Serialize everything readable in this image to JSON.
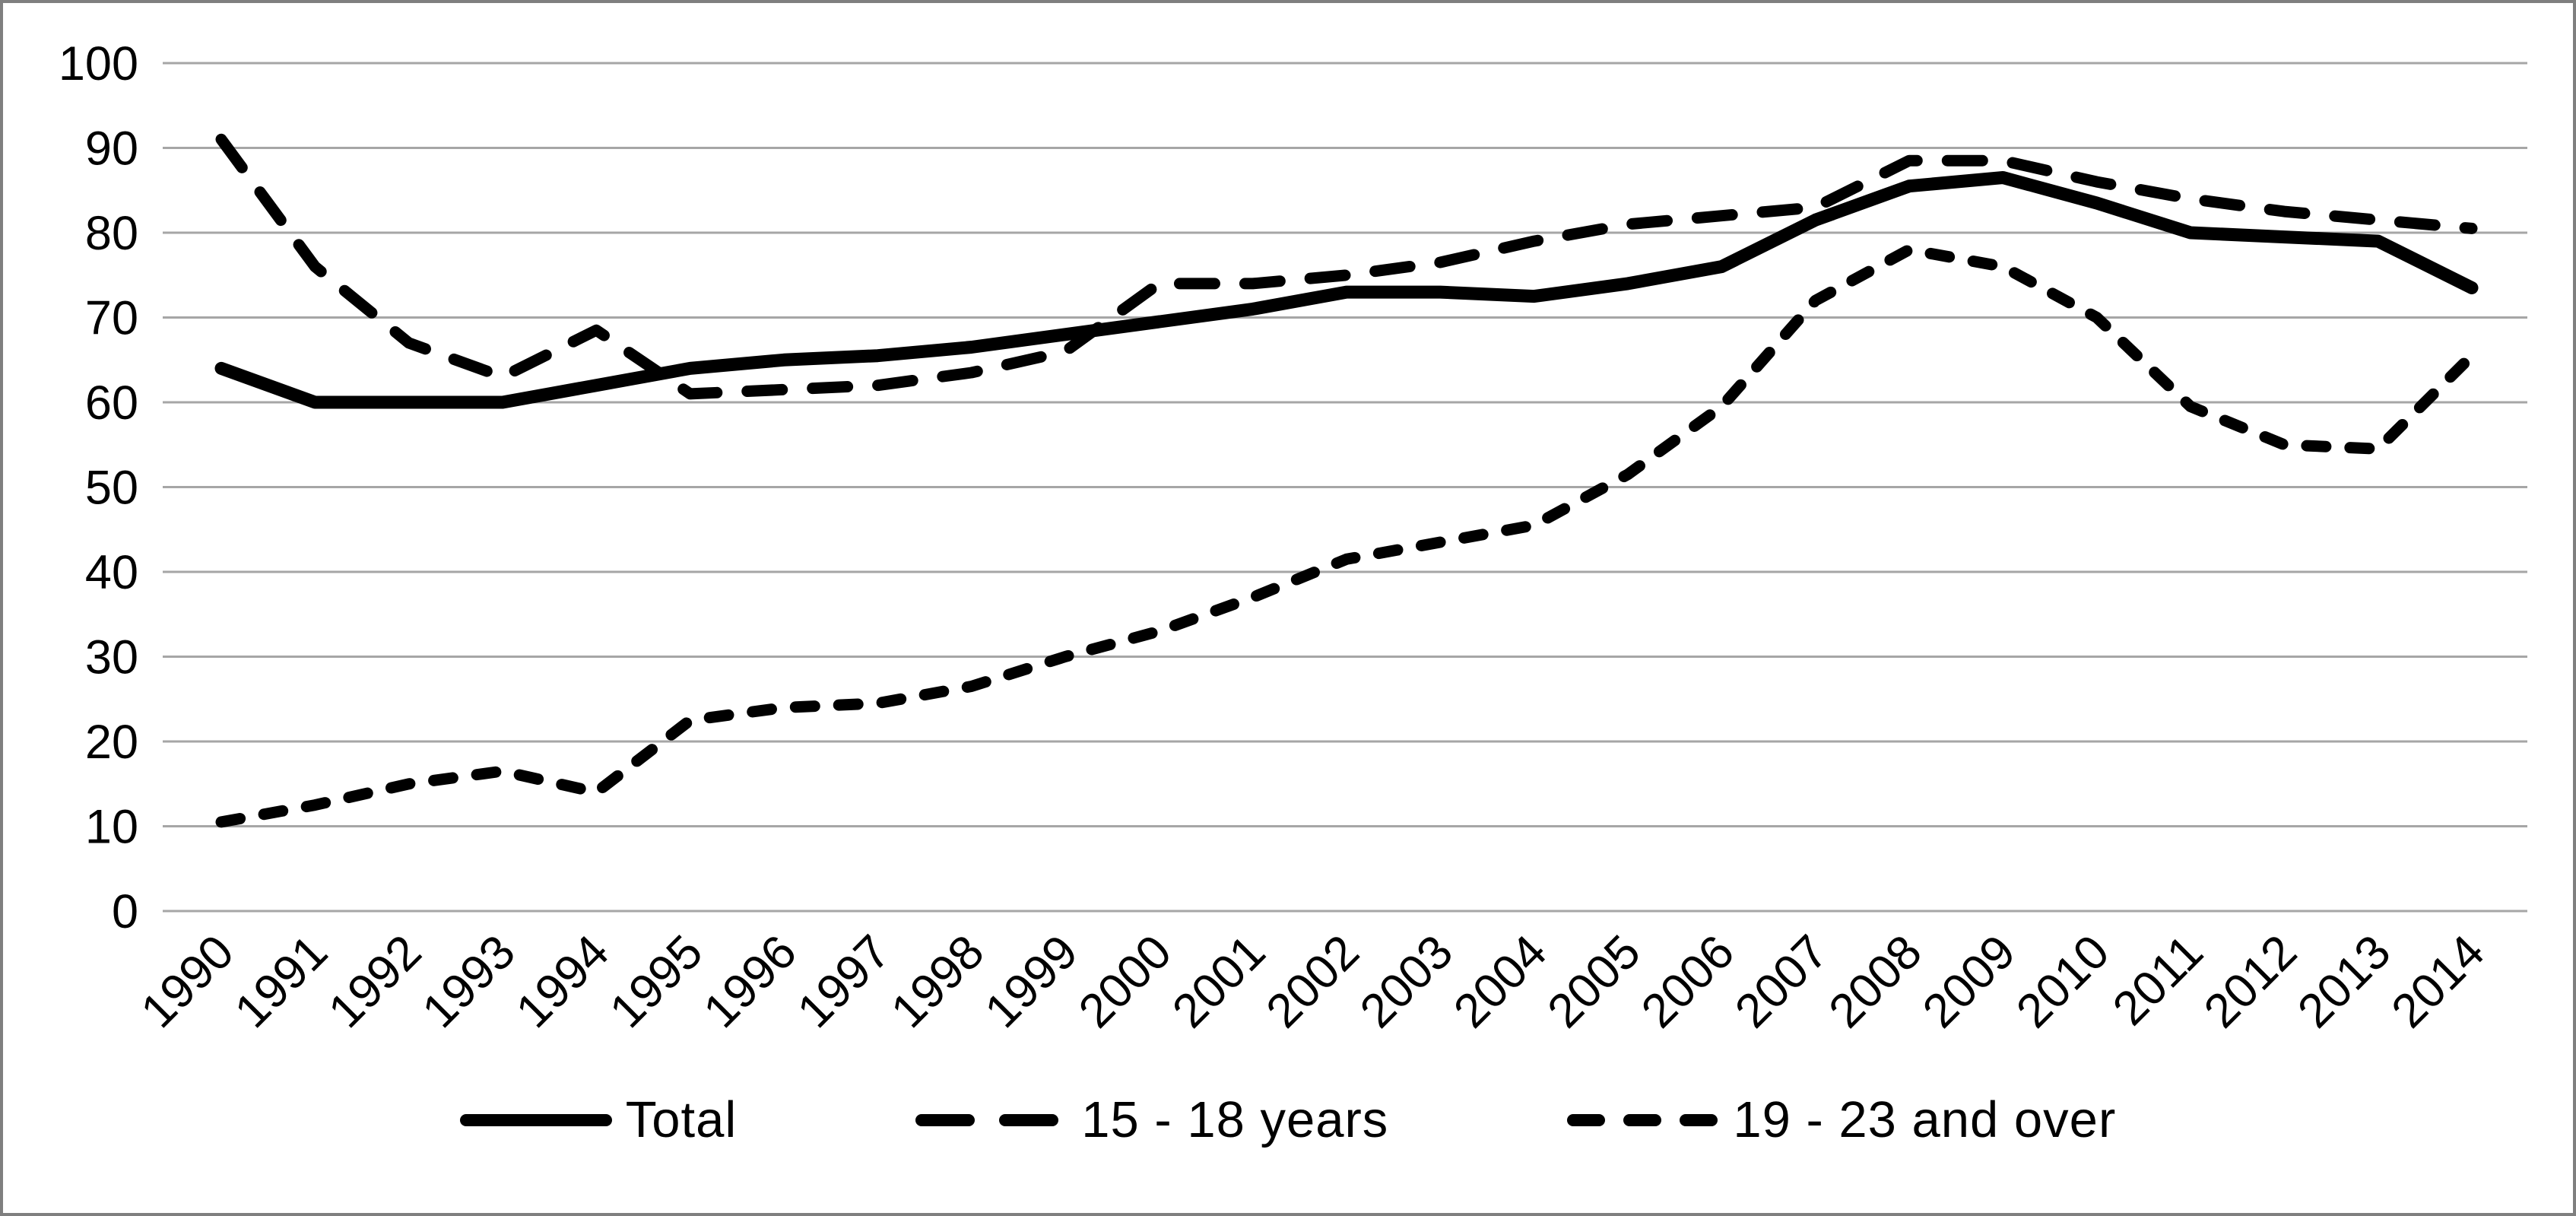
{
  "chart_data": {
    "type": "line",
    "title": "",
    "categories": [
      "1990",
      "1991",
      "1992",
      "1993",
      "1994",
      "1995",
      "1996",
      "1997",
      "1998",
      "1999",
      "2000",
      "2001",
      "2002",
      "2003",
      "2004",
      "2005",
      "2006",
      "2007",
      "2008",
      "2009",
      "2010",
      "2011",
      "2012",
      "2013",
      "2014"
    ],
    "series": [
      {
        "name": "Total",
        "style": "solid",
        "values": [
          64,
          60,
          60,
          60,
          62,
          64,
          65,
          65.5,
          66.5,
          68,
          69.5,
          71,
          73,
          73,
          72.5,
          74,
          76,
          81.5,
          85.5,
          86.5,
          83.5,
          80,
          79.5,
          79,
          73.5
        ]
      },
      {
        "name": "15 - 18 years",
        "style": "long-dash",
        "values": [
          91,
          76,
          67,
          63,
          68.5,
          61,
          61.5,
          62,
          63.5,
          66,
          74,
          74,
          75,
          76.5,
          79,
          81,
          82,
          83,
          88.5,
          88.5,
          86,
          84,
          82.5,
          81.5,
          80.5
        ]
      },
      {
        "name": "19 - 23 and over",
        "style": "short-dash",
        "values": [
          10.5,
          12.5,
          15,
          16.5,
          14,
          22.5,
          24,
          24.5,
          26.5,
          30,
          33,
          37,
          41.5,
          43.5,
          45.5,
          51.5,
          59.5,
          72,
          78,
          76,
          70,
          59.5,
          55,
          54.5,
          65.5
        ]
      }
    ],
    "ylim": [
      0,
      100
    ],
    "ytick_step": 10,
    "xlabel": "",
    "ylabel": "",
    "grid": "horizontal",
    "legend_position": "bottom-center",
    "line_color": "#000000",
    "grid_color": "#a6a6a6",
    "text_color": "#000000",
    "border_color": "#7f7f7f",
    "background_color": "#ffffff"
  }
}
